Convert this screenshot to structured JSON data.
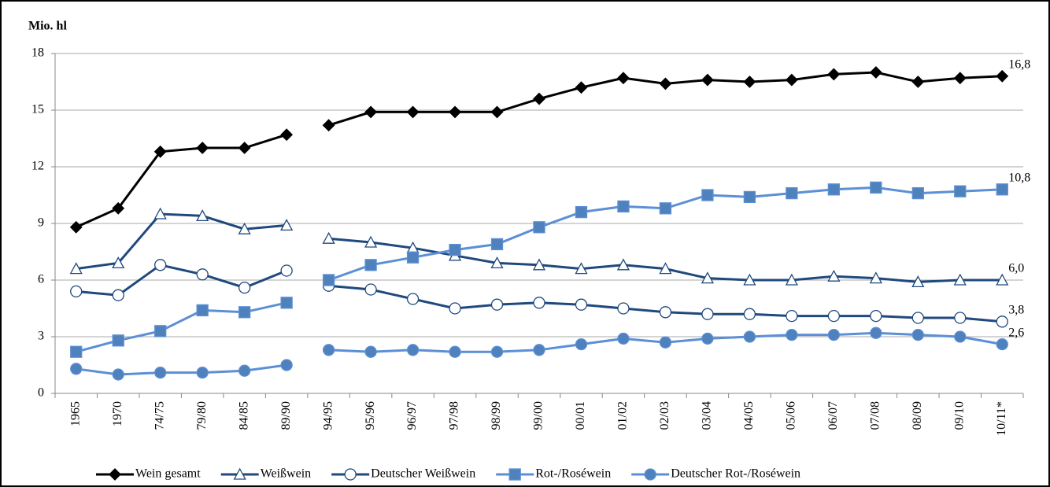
{
  "chart_data": {
    "type": "line",
    "y_label": "Mio. hl",
    "categories": [
      "1965",
      "1970",
      "74/75",
      "79/80",
      "84/85",
      "89/90",
      "94/95",
      "95/96",
      "96/97",
      "97/98",
      "98/99",
      "99/00",
      "00/01",
      "01/02",
      "02/03",
      "03/04",
      "04/05",
      "05/06",
      "06/07",
      "07/08",
      "08/09",
      "09/10",
      "10/11*"
    ],
    "ylim": [
      0,
      18
    ],
    "yticks": [
      0,
      3,
      6,
      9,
      12,
      15,
      18
    ],
    "grid": true,
    "legend": "bottom",
    "series": [
      {
        "name": "Wein gesamt",
        "color": "#000000",
        "marker": "diamond",
        "marker_fill": "#000000",
        "values": [
          8.8,
          9.8,
          12.8,
          13.0,
          13.0,
          13.7,
          14.2,
          14.9,
          14.9,
          14.9,
          14.9,
          15.6,
          16.2,
          16.7,
          16.4,
          16.6,
          16.5,
          16.6,
          16.9,
          17.0,
          16.5,
          16.7,
          16.8
        ],
        "value_labels": [
          null,
          null,
          null,
          null,
          null,
          null,
          null,
          null,
          null,
          null,
          null,
          null,
          null,
          null,
          null,
          null,
          null,
          null,
          null,
          null,
          null,
          null,
          "16,8"
        ]
      },
      {
        "name": "Weißwein",
        "color": "#1f497d",
        "marker": "triangle",
        "marker_fill": "#ffffff",
        "values": [
          6.6,
          6.9,
          9.5,
          9.4,
          8.7,
          8.9,
          8.2,
          8.0,
          7.7,
          7.3,
          6.9,
          6.8,
          6.6,
          6.8,
          6.6,
          6.1,
          6.0,
          6.0,
          6.2,
          6.1,
          5.9,
          6.0,
          6.0
        ],
        "value_labels": [
          null,
          null,
          null,
          null,
          null,
          null,
          null,
          null,
          null,
          null,
          null,
          null,
          null,
          null,
          null,
          null,
          null,
          null,
          null,
          null,
          null,
          null,
          "6,0"
        ]
      },
      {
        "name": "Deutscher Weißwein",
        "color": "#1f497d",
        "marker": "circle",
        "marker_fill": "#ffffff",
        "values": [
          5.4,
          5.2,
          6.8,
          6.3,
          5.6,
          6.5,
          5.7,
          5.5,
          5.0,
          4.5,
          4.7,
          4.8,
          4.7,
          4.5,
          4.3,
          4.2,
          4.2,
          4.1,
          4.1,
          4.1,
          4.0,
          4.0,
          3.8
        ],
        "value_labels": [
          null,
          null,
          null,
          null,
          null,
          null,
          null,
          null,
          null,
          null,
          null,
          null,
          null,
          null,
          null,
          null,
          null,
          null,
          null,
          null,
          null,
          null,
          "3,8"
        ]
      },
      {
        "name": "Rot-/Roséwein",
        "color": "#5b8fd6",
        "marker": "square",
        "marker_fill": "#4f81bd",
        "values": [
          2.2,
          2.8,
          3.3,
          4.4,
          4.3,
          4.8,
          6.0,
          6.8,
          7.2,
          7.6,
          7.9,
          8.8,
          9.6,
          9.9,
          9.8,
          10.5,
          10.4,
          10.6,
          10.8,
          10.9,
          10.6,
          10.7,
          10.8
        ],
        "value_labels": [
          null,
          null,
          null,
          null,
          null,
          null,
          null,
          null,
          null,
          null,
          null,
          null,
          null,
          null,
          null,
          null,
          null,
          null,
          null,
          null,
          null,
          null,
          "10,8"
        ]
      },
      {
        "name": "Deutscher Rot-/Roséwein",
        "color": "#5b8fd6",
        "marker": "circle",
        "marker_fill": "#4f81bd",
        "values": [
          1.3,
          1.0,
          1.1,
          1.1,
          1.2,
          1.5,
          2.3,
          2.2,
          2.3,
          2.2,
          2.2,
          2.3,
          2.6,
          2.9,
          2.7,
          2.9,
          3.0,
          3.1,
          3.1,
          3.2,
          3.1,
          3.0,
          2.6
        ],
        "value_labels": [
          null,
          null,
          null,
          null,
          null,
          null,
          null,
          null,
          null,
          null,
          null,
          null,
          null,
          null,
          null,
          null,
          null,
          null,
          null,
          null,
          null,
          null,
          "2,6"
        ]
      }
    ]
  }
}
